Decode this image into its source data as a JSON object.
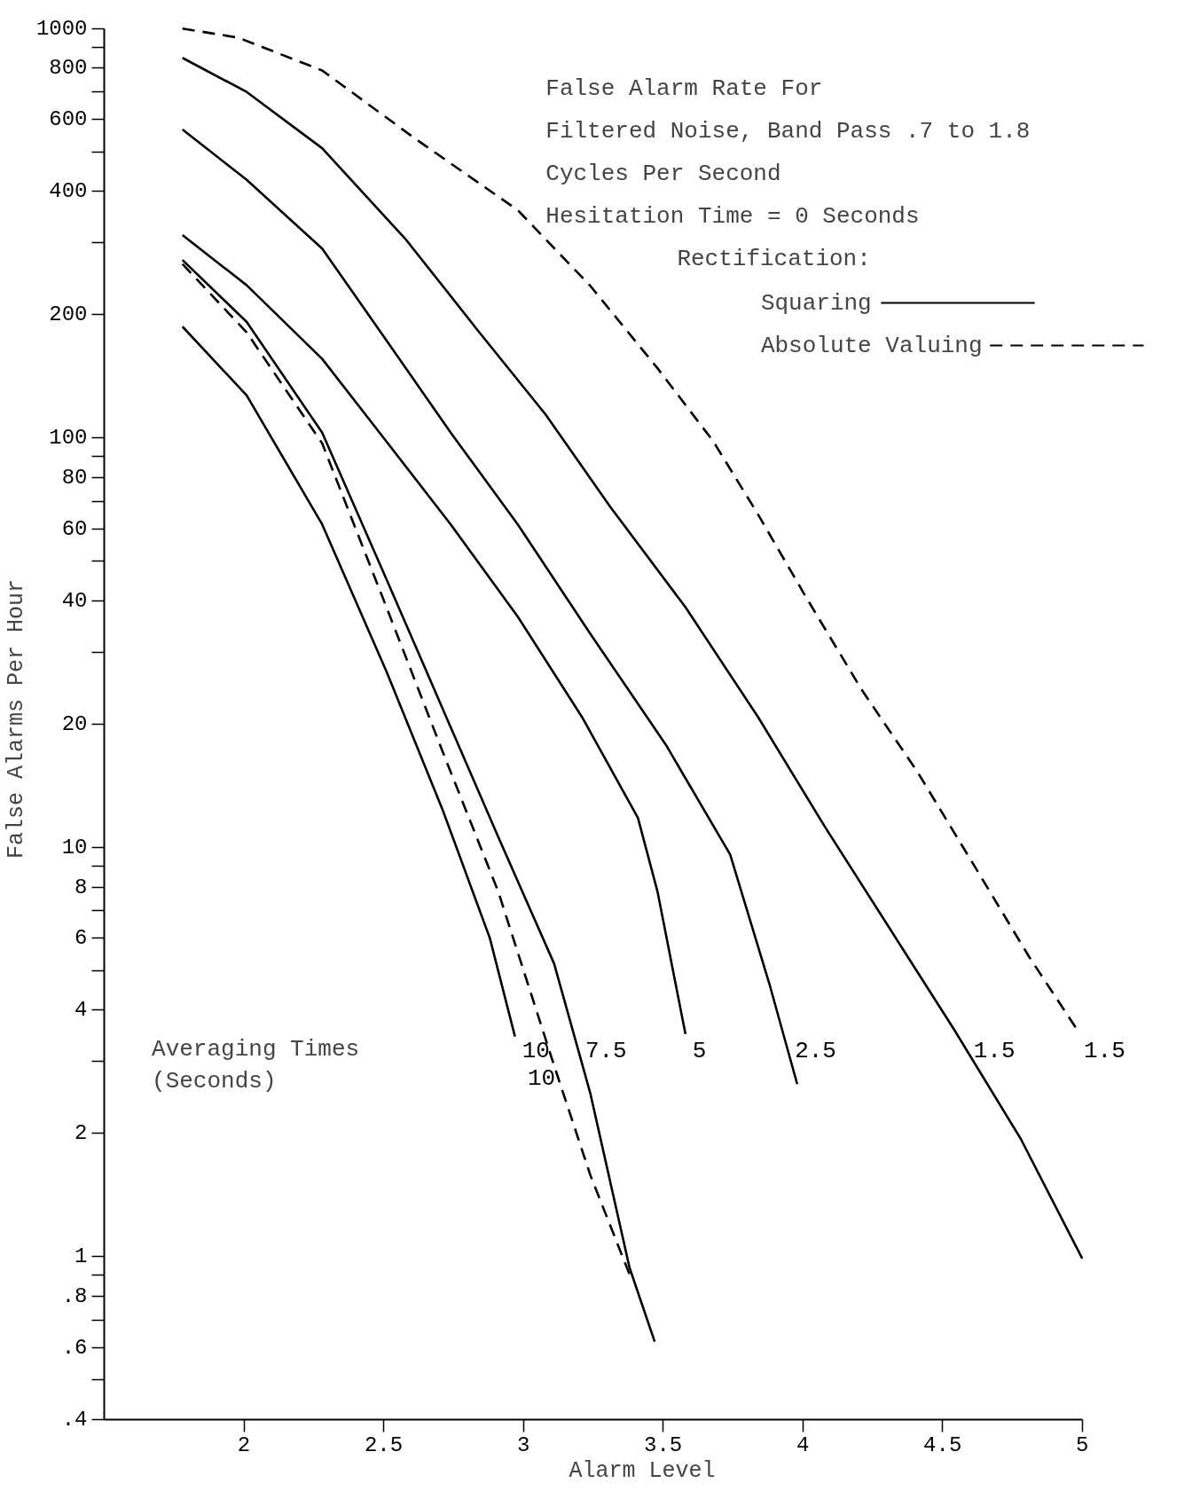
{
  "chart_data": {
    "type": "line",
    "title": "False Alarm Rate For\nFiltered Noise, Band Pass .7 to 1.8\nCycles Per Second\nHesitation Time = 0 Seconds",
    "xlabel": "Alarm Level",
    "ylabel": "False Alarms Per Hour",
    "legend_title": "Rectification:",
    "grid": false,
    "log": "y",
    "marker": "none",
    "xlim": [
      1.5,
      5
    ],
    "xticks": [
      2,
      2.5,
      3,
      3.5,
      4,
      4.5,
      5
    ],
    "ylim": [
      0.4,
      1000
    ],
    "yticks": [
      {
        "value": 0.4,
        "label": ".4"
      },
      {
        "value": 0.5,
        "label": null
      },
      {
        "value": 0.6,
        "label": ".6"
      },
      {
        "value": 0.7,
        "label": null
      },
      {
        "value": 0.8,
        "label": ".8"
      },
      {
        "value": 0.9,
        "label": null
      },
      1,
      2,
      {
        "value": 3,
        "label": null
      },
      4,
      {
        "value": 5,
        "label": null
      },
      6,
      {
        "value": 7,
        "label": null
      },
      8,
      {
        "value": 9,
        "label": null
      },
      10,
      20,
      {
        "value": 30,
        "label": null
      },
      40,
      {
        "value": 50,
        "label": null
      },
      60,
      {
        "value": 70,
        "label": null
      },
      80,
      {
        "value": 90,
        "label": null
      },
      100,
      200,
      {
        "value": 300,
        "label": null
      },
      400,
      {
        "value": 500,
        "label": null
      },
      600,
      {
        "value": 700,
        "label": null
      },
      800,
      {
        "value": 900,
        "label": null
      },
      1000
    ],
    "series": [
      {
        "name": "1.5",
        "color": "#000000",
        "line_style": "dashed",
        "x": [
          1.78,
          1.98,
          2.28,
          2.61,
          2.98,
          3.24,
          3.48,
          3.68,
          3.84,
          4.01,
          4.21,
          4.41,
          4.61,
          4.81,
          4.98
        ],
        "values": [
          1000,
          950,
          790,
          540,
          360,
          235,
          148,
          98,
          65,
          41,
          24.3,
          15.3,
          9.1,
          5.4,
          3.6
        ]
      },
      {
        "name": "1.5",
        "color": "#000000",
        "line_style": "solid",
        "x": [
          1.78,
          2.01,
          2.28,
          2.58,
          2.84,
          3.08,
          3.31,
          3.58,
          3.84,
          4.08,
          4.31,
          4.54,
          4.78,
          5.0
        ],
        "values": [
          848,
          700,
          510,
          305,
          182,
          114,
          68,
          38.6,
          20.8,
          11.2,
          6.35,
          3.6,
          1.94,
          0.99
        ]
      },
      {
        "name": "2.5",
        "color": "#000000",
        "line_style": "solid",
        "x": [
          1.78,
          2.01,
          2.28,
          2.51,
          2.74,
          2.98,
          3.24,
          3.51,
          3.74,
          3.88,
          3.98
        ],
        "values": [
          567,
          427,
          290,
          173,
          103,
          61.5,
          33.2,
          17.8,
          9.6,
          4.65,
          2.64
        ]
      },
      {
        "name": "5",
        "color": "#000000",
        "line_style": "solid",
        "x": [
          1.78,
          2.01,
          2.28,
          2.51,
          2.74,
          2.98,
          3.21,
          3.41,
          3.48,
          3.58
        ],
        "values": [
          313,
          236,
          156,
          98,
          61.5,
          36.6,
          20.8,
          11.8,
          7.8,
          3.5
        ]
      },
      {
        "name": "7.5",
        "color": "#000000",
        "line_style": "solid",
        "x": [
          1.78,
          2.01,
          2.28,
          2.51,
          2.71,
          2.91,
          3.11,
          3.24,
          3.38,
          3.47
        ],
        "values": [
          272,
          192,
          103,
          45.2,
          21.9,
          10.6,
          5.2,
          2.5,
          0.94,
          0.62
        ]
      },
      {
        "name": "10",
        "color": "#000000",
        "line_style": "solid",
        "x": [
          1.78,
          2.01,
          2.28,
          2.51,
          2.71,
          2.88,
          2.97
        ],
        "values": [
          187,
          127,
          61.5,
          26.9,
          12.4,
          6.0,
          3.45
        ]
      },
      {
        "name": "10",
        "color": "#000000",
        "line_style": "dashed",
        "x": [
          1.78,
          2.01,
          2.28,
          2.51,
          2.71,
          2.91,
          3.11,
          3.24,
          3.39
        ],
        "values": [
          266,
          181,
          97,
          38.6,
          17.2,
          7.8,
          2.93,
          1.58,
          0.87
        ]
      }
    ],
    "annotations": [
      "Averaging Times\n(Seconds)",
      "Squaring",
      "Absolute Valuing"
    ]
  }
}
